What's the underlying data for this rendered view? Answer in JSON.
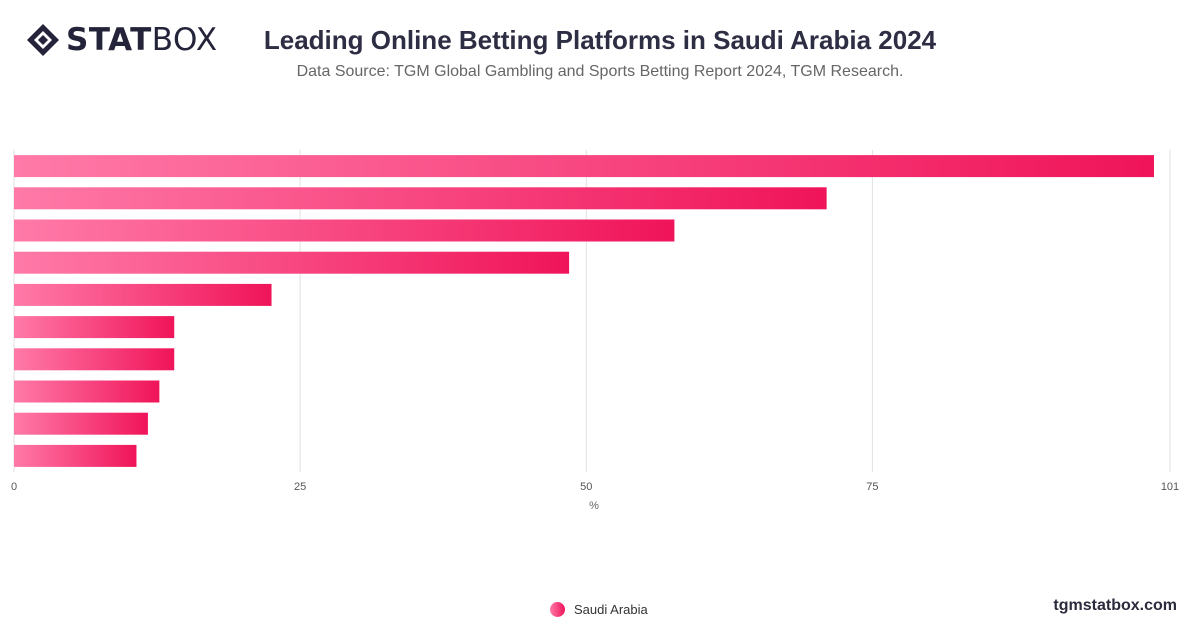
{
  "brand": {
    "logo_bold": "STAT",
    "logo_light": "BOX",
    "site": "tgmstatbox.com"
  },
  "header": {
    "title": "Leading Online Betting Platforms in Saudi Arabia 2024",
    "subtitle": "Data Source: TGM Global Gambling and Sports Betting Report 2024, TGM Research."
  },
  "colors": {
    "bar_start": "#ff7aa8",
    "bar_end": "#f0145a",
    "grid": "#e1e1e1"
  },
  "chart_data": {
    "type": "bar",
    "orientation": "horizontal",
    "categories": [
      "",
      "",
      "",
      "",
      "",
      "",
      "",
      "",
      "",
      ""
    ],
    "series": [
      {
        "name": "Saudi Arabia",
        "values": [
          99.6,
          71,
          57.7,
          48.5,
          22.5,
          14,
          14,
          12.7,
          11.7,
          10.7
        ]
      }
    ],
    "xlabel": "%",
    "xlim": [
      0,
      101
    ],
    "xticks": [
      0,
      25,
      50,
      75,
      101
    ],
    "grid": true,
    "legend": "bottom-center"
  }
}
